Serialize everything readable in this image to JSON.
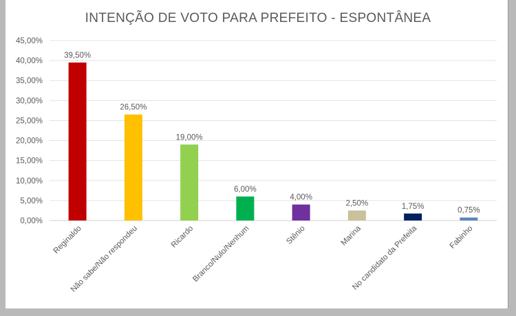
{
  "chart_data": {
    "type": "bar",
    "title": "INTENÇÃO DE VOTO PARA PREFEITO - ESPONTÂNEA",
    "categories": [
      "Reginaldo",
      "Não sabe/Não respondeu",
      "Ricardo",
      "Branco/Nulo/Nenhum",
      "Stênio",
      "Marina",
      "No candidato da Prefeita",
      "Fabinho"
    ],
    "values": [
      39.5,
      26.5,
      19.0,
      6.0,
      4.0,
      2.5,
      1.75,
      0.75
    ],
    "value_labels": [
      "39,50%",
      "26,50%",
      "19,00%",
      "6,00%",
      "4,00%",
      "2,50%",
      "1,75%",
      "0,75%"
    ],
    "colors": [
      "#c00000",
      "#ffc000",
      "#92d050",
      "#00b050",
      "#7030a0",
      "#c9c19b",
      "#002060",
      "#5b87b8"
    ],
    "ylim": [
      0,
      45
    ],
    "yticks": [
      "0,00%",
      "5,00%",
      "10,00%",
      "15,00%",
      "20,00%",
      "25,00%",
      "30,00%",
      "35,00%",
      "40,00%",
      "45,00%"
    ],
    "xlabel": "",
    "ylabel": "",
    "grid": true,
    "legend": "none"
  }
}
